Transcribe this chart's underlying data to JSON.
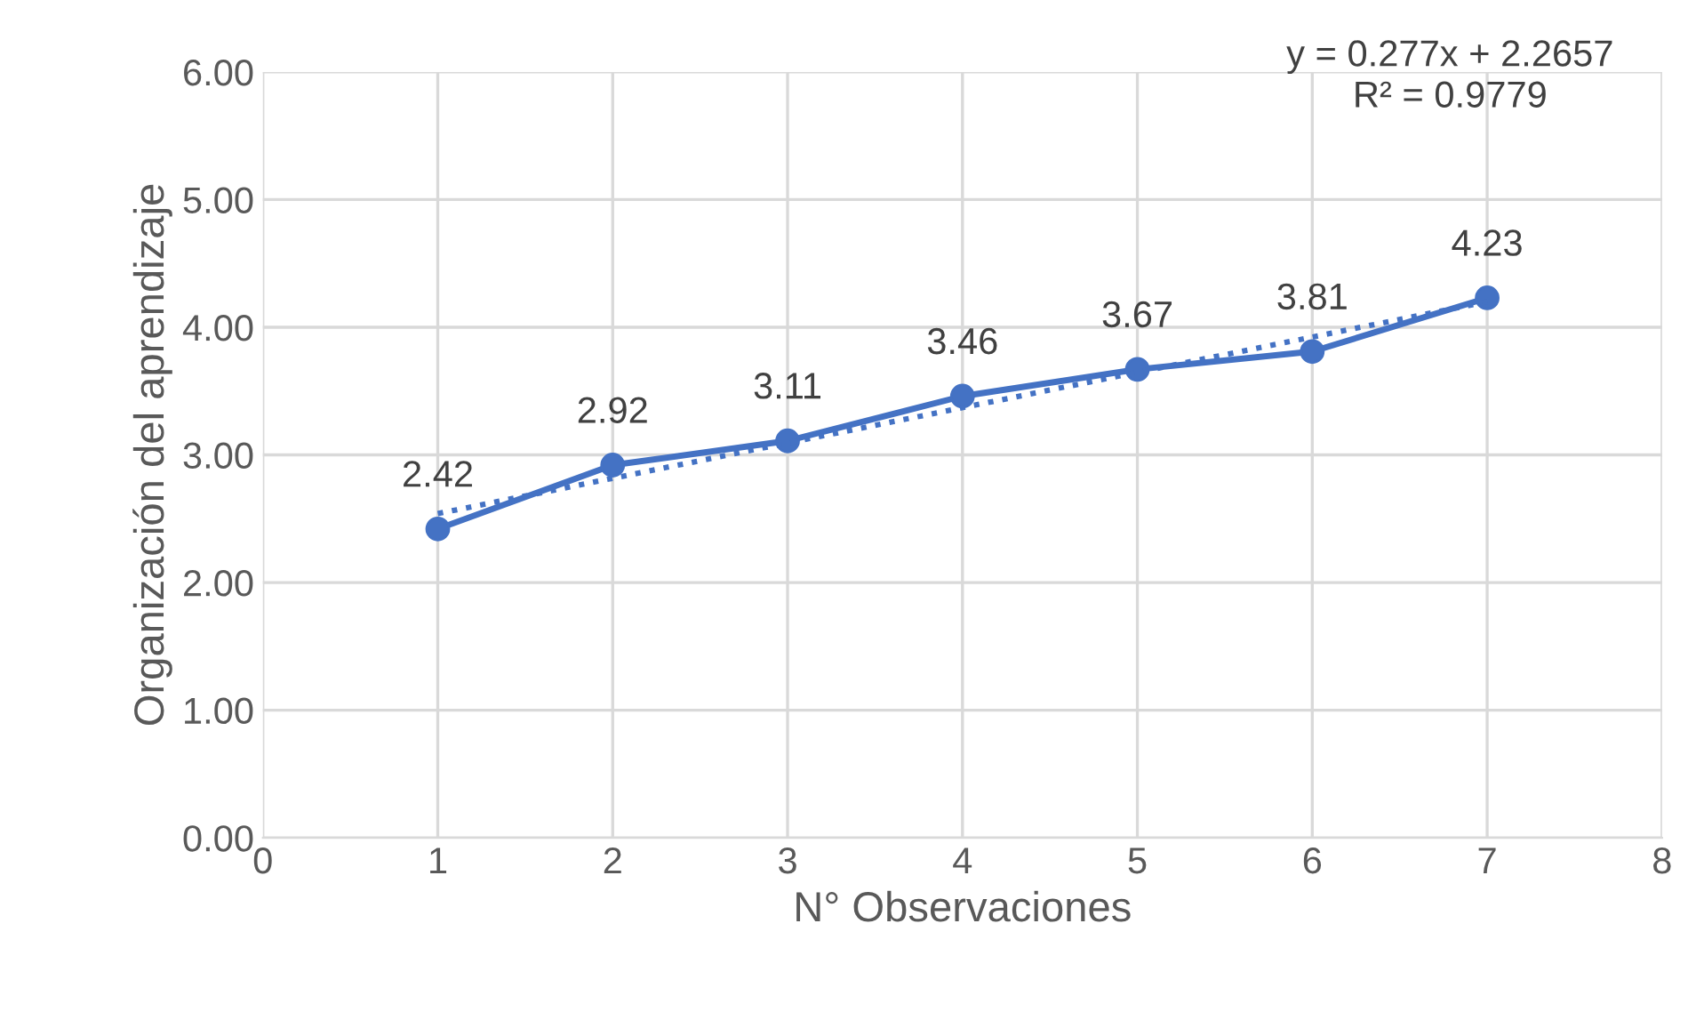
{
  "chart_data": {
    "type": "line",
    "xlabel": "N° Observaciones",
    "ylabel": "Organización del aprendizaje",
    "x": [
      1,
      2,
      3,
      4,
      5,
      6,
      7
    ],
    "series": [
      {
        "color": "#4472c4",
        "values": [
          2.42,
          2.92,
          3.11,
          3.46,
          3.67,
          3.81,
          4.23
        ],
        "marker": "circle",
        "line_style": "solid",
        "value_labels": [
          "2.42",
          "2.92",
          "3.11",
          "3.46",
          "3.67",
          "3.81",
          "4.23"
        ]
      },
      {
        "type": "line",
        "color": "#4472c4",
        "x": [
          1,
          7
        ],
        "values": [
          2.54,
          4.2
        ],
        "marker": "none",
        "line_style": "dotted"
      }
    ],
    "xlim": [
      0,
      8
    ],
    "xticks": [
      0,
      1,
      2,
      3,
      4,
      5,
      6,
      7,
      8
    ],
    "ylim": [
      0,
      6
    ],
    "yticks": [
      {
        "value": 0,
        "label": "0.00"
      },
      {
        "value": 1,
        "label": "1.00"
      },
      {
        "value": 2,
        "label": "2.00"
      },
      {
        "value": 3,
        "label": "3.00"
      },
      {
        "value": 4,
        "label": "4.00"
      },
      {
        "value": 5,
        "label": "5.00"
      },
      {
        "value": 6,
        "label": "6.00"
      }
    ],
    "grid": true,
    "legend": false,
    "annotations": [
      "y = 0.277x + 2.2657",
      "R² = 0.9779"
    ]
  }
}
